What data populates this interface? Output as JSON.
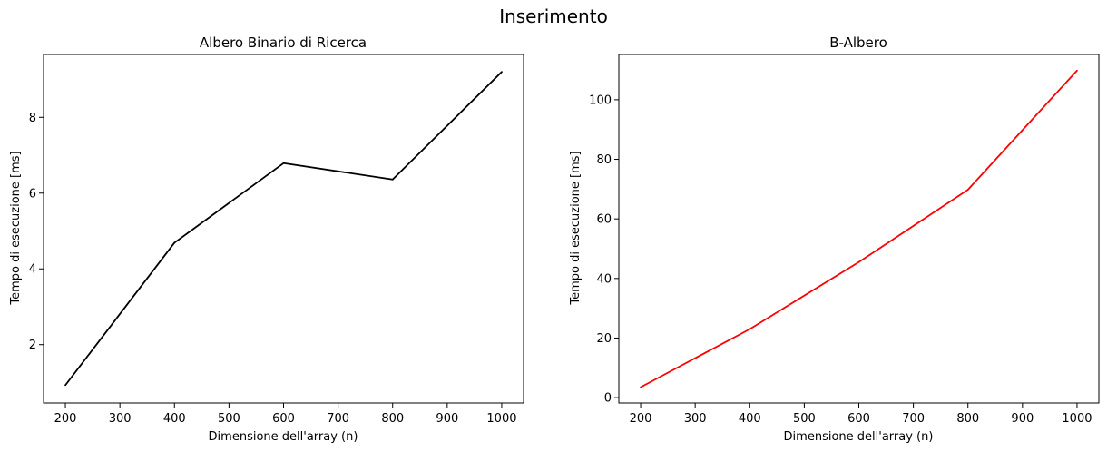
{
  "figure": {
    "suptitle": "Inserimento"
  },
  "chart_data": [
    {
      "type": "line",
      "title": "Albero Binario di Ricerca",
      "xlabel": "Dimensione dell'array (n)",
      "ylabel": "Tempo di esecuzione [ms]",
      "x": [
        200,
        400,
        600,
        800,
        1000
      ],
      "series": [
        {
          "values": [
            0.93,
            4.69,
            6.79,
            6.36,
            9.2
          ],
          "color": "#000000"
        }
      ],
      "xlim": [
        160,
        1040
      ],
      "ylim": [
        0.46,
        9.66
      ],
      "xticks": [
        200,
        300,
        400,
        500,
        600,
        700,
        800,
        900,
        1000
      ],
      "yticks": [
        2,
        4,
        6,
        8
      ],
      "grid": false,
      "legend": false
    },
    {
      "type": "line",
      "title": "B-Albero",
      "xlabel": "Dimensione dell'array (n)",
      "ylabel": "Tempo di esecuzione [ms]",
      "x": [
        200,
        400,
        600,
        800,
        1000
      ],
      "series": [
        {
          "values": [
            3.5,
            23.0,
            45.5,
            69.8,
            109.8
          ],
          "color": "#ff0000"
        }
      ],
      "xlim": [
        160,
        1040
      ],
      "ylim": [
        -1.8,
        115.2
      ],
      "xticks": [
        200,
        300,
        400,
        500,
        600,
        700,
        800,
        900,
        1000
      ],
      "yticks": [
        0,
        20,
        40,
        60,
        80,
        100
      ],
      "grid": false,
      "legend": false
    }
  ]
}
